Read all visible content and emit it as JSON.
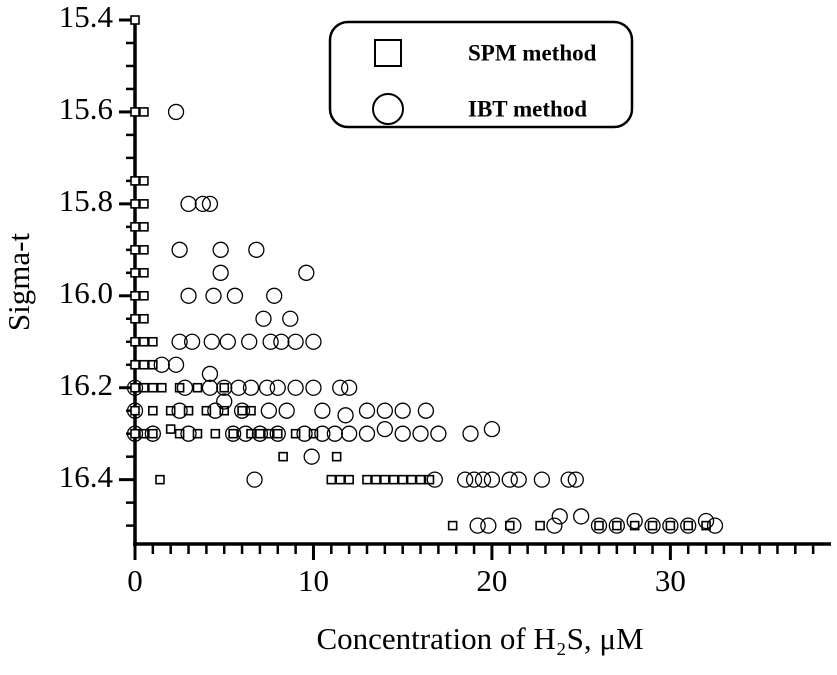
{
  "chart_data": {
    "type": "scatter",
    "x_label": "Concentration of H₂S, μM",
    "y_label": "Sigma-t",
    "xlim": [
      0,
      39
    ],
    "xticks": [
      0,
      10,
      20,
      30
    ],
    "xticks_minor": [
      1,
      2,
      3,
      4,
      5,
      6,
      7,
      8,
      9,
      11,
      12,
      13,
      14,
      15,
      16,
      17,
      18,
      19,
      21,
      22,
      23,
      24,
      25,
      26,
      27,
      28,
      29,
      31,
      32,
      33,
      34,
      35,
      36,
      37,
      38
    ],
    "ylim": [
      15.4,
      16.54
    ],
    "y_reversed": true,
    "yticks": [
      15.4,
      15.6,
      15.8,
      {
        "value": 16,
        "label": "16.0"
      },
      16.2,
      16.4
    ],
    "yticks_minor": [
      15.45,
      15.5,
      15.55,
      15.65,
      15.7,
      15.75,
      15.85,
      15.9,
      15.95,
      16.05,
      16.1,
      16.15,
      16.25,
      16.3,
      16.35,
      16.45,
      16.5
    ],
    "legend": "upper right",
    "series": [
      {
        "name": "SPM method",
        "color": "#000000",
        "marker": "square",
        "x": [
          0,
          0,
          0.5,
          0,
          0.5,
          0,
          0.5,
          0,
          0.5,
          0,
          0.5,
          0,
          0.5,
          0,
          0.5,
          0,
          0.5,
          0,
          0.5,
          1,
          0,
          0.5,
          1,
          0,
          0.5,
          1,
          1.5,
          2.5,
          3.5,
          5,
          0,
          1,
          2,
          3,
          4,
          5,
          6,
          6.5,
          0,
          0.5,
          1,
          2,
          2.5,
          3.5,
          4.5,
          5.5,
          6.5,
          7,
          7.5,
          8,
          9,
          10,
          1.4,
          8.3,
          11.3,
          11,
          11.5,
          12,
          13,
          13.5,
          14,
          14.5,
          15,
          15.5,
          16,
          16.5,
          17.8,
          21,
          22.7,
          26,
          27,
          28,
          29,
          30,
          31,
          32
        ],
        "values": [
          15.4,
          15.6,
          15.6,
          15.75,
          15.75,
          15.8,
          15.8,
          15.85,
          15.85,
          15.9,
          15.9,
          15.95,
          15.95,
          16.0,
          16.0,
          16.05,
          16.05,
          16.1,
          16.1,
          16.1,
          16.15,
          16.15,
          16.15,
          16.2,
          16.2,
          16.2,
          16.2,
          16.2,
          16.2,
          16.2,
          16.25,
          16.25,
          16.25,
          16.25,
          16.25,
          16.25,
          16.25,
          16.25,
          16.3,
          16.3,
          16.3,
          16.29,
          16.3,
          16.3,
          16.3,
          16.3,
          16.3,
          16.3,
          16.3,
          16.3,
          16.3,
          16.3,
          16.4,
          16.35,
          16.35,
          16.4,
          16.4,
          16.4,
          16.4,
          16.4,
          16.4,
          16.4,
          16.4,
          16.4,
          16.4,
          16.4,
          16.5,
          16.5,
          16.5,
          16.5,
          16.5,
          16.5,
          16.5,
          16.5,
          16.5,
          16.5
        ]
      },
      {
        "name": "IBT method",
        "color": "#000000",
        "marker": "circle",
        "x": [
          2.3,
          3,
          3.8,
          4.2,
          2.5,
          4.8,
          6.8,
          4.8,
          9.6,
          3,
          4.4,
          5.6,
          7.8,
          7.2,
          8.7,
          2.5,
          3.2,
          4.3,
          5.2,
          6.4,
          7.6,
          8.2,
          9,
          10,
          1.5,
          2.3,
          4.2,
          0,
          2.8,
          4.2,
          5,
          5.8,
          6.5,
          7.4,
          8,
          9,
          10,
          11.5,
          12,
          0,
          2.5,
          4.5,
          5,
          6,
          7.5,
          8.5,
          10.5,
          11.8,
          13,
          14,
          15,
          16.3,
          0,
          1,
          3,
          5.5,
          6.2,
          7,
          8,
          9.5,
          10.5,
          11.2,
          12,
          13,
          14,
          15,
          16,
          17,
          18.8,
          20,
          6.7,
          9.9,
          16.8,
          18.5,
          19,
          19.5,
          20,
          21,
          21.5,
          22.8,
          24.3,
          24.7,
          19.2,
          19.8,
          21.2,
          23.5,
          23.8,
          25,
          26,
          27,
          28,
          29,
          30,
          31,
          32,
          32.5
        ],
        "values": [
          15.6,
          15.8,
          15.8,
          15.8,
          15.9,
          15.9,
          15.9,
          15.95,
          15.95,
          16.0,
          16.0,
          16.0,
          16.0,
          16.05,
          16.05,
          16.1,
          16.1,
          16.1,
          16.1,
          16.1,
          16.1,
          16.1,
          16.1,
          16.1,
          16.15,
          16.15,
          16.17,
          16.2,
          16.2,
          16.2,
          16.2,
          16.2,
          16.2,
          16.2,
          16.2,
          16.2,
          16.2,
          16.2,
          16.2,
          16.25,
          16.25,
          16.25,
          16.23,
          16.25,
          16.25,
          16.25,
          16.25,
          16.26,
          16.25,
          16.25,
          16.25,
          16.25,
          16.3,
          16.3,
          16.3,
          16.3,
          16.3,
          16.3,
          16.3,
          16.3,
          16.3,
          16.3,
          16.3,
          16.3,
          16.29,
          16.3,
          16.3,
          16.3,
          16.3,
          16.29,
          16.4,
          16.35,
          16.4,
          16.4,
          16.4,
          16.4,
          16.4,
          16.4,
          16.4,
          16.4,
          16.4,
          16.4,
          16.5,
          16.5,
          16.5,
          16.5,
          16.48,
          16.48,
          16.5,
          16.5,
          16.49,
          16.5,
          16.5,
          16.5,
          16.49,
          16.5
        ]
      }
    ]
  }
}
